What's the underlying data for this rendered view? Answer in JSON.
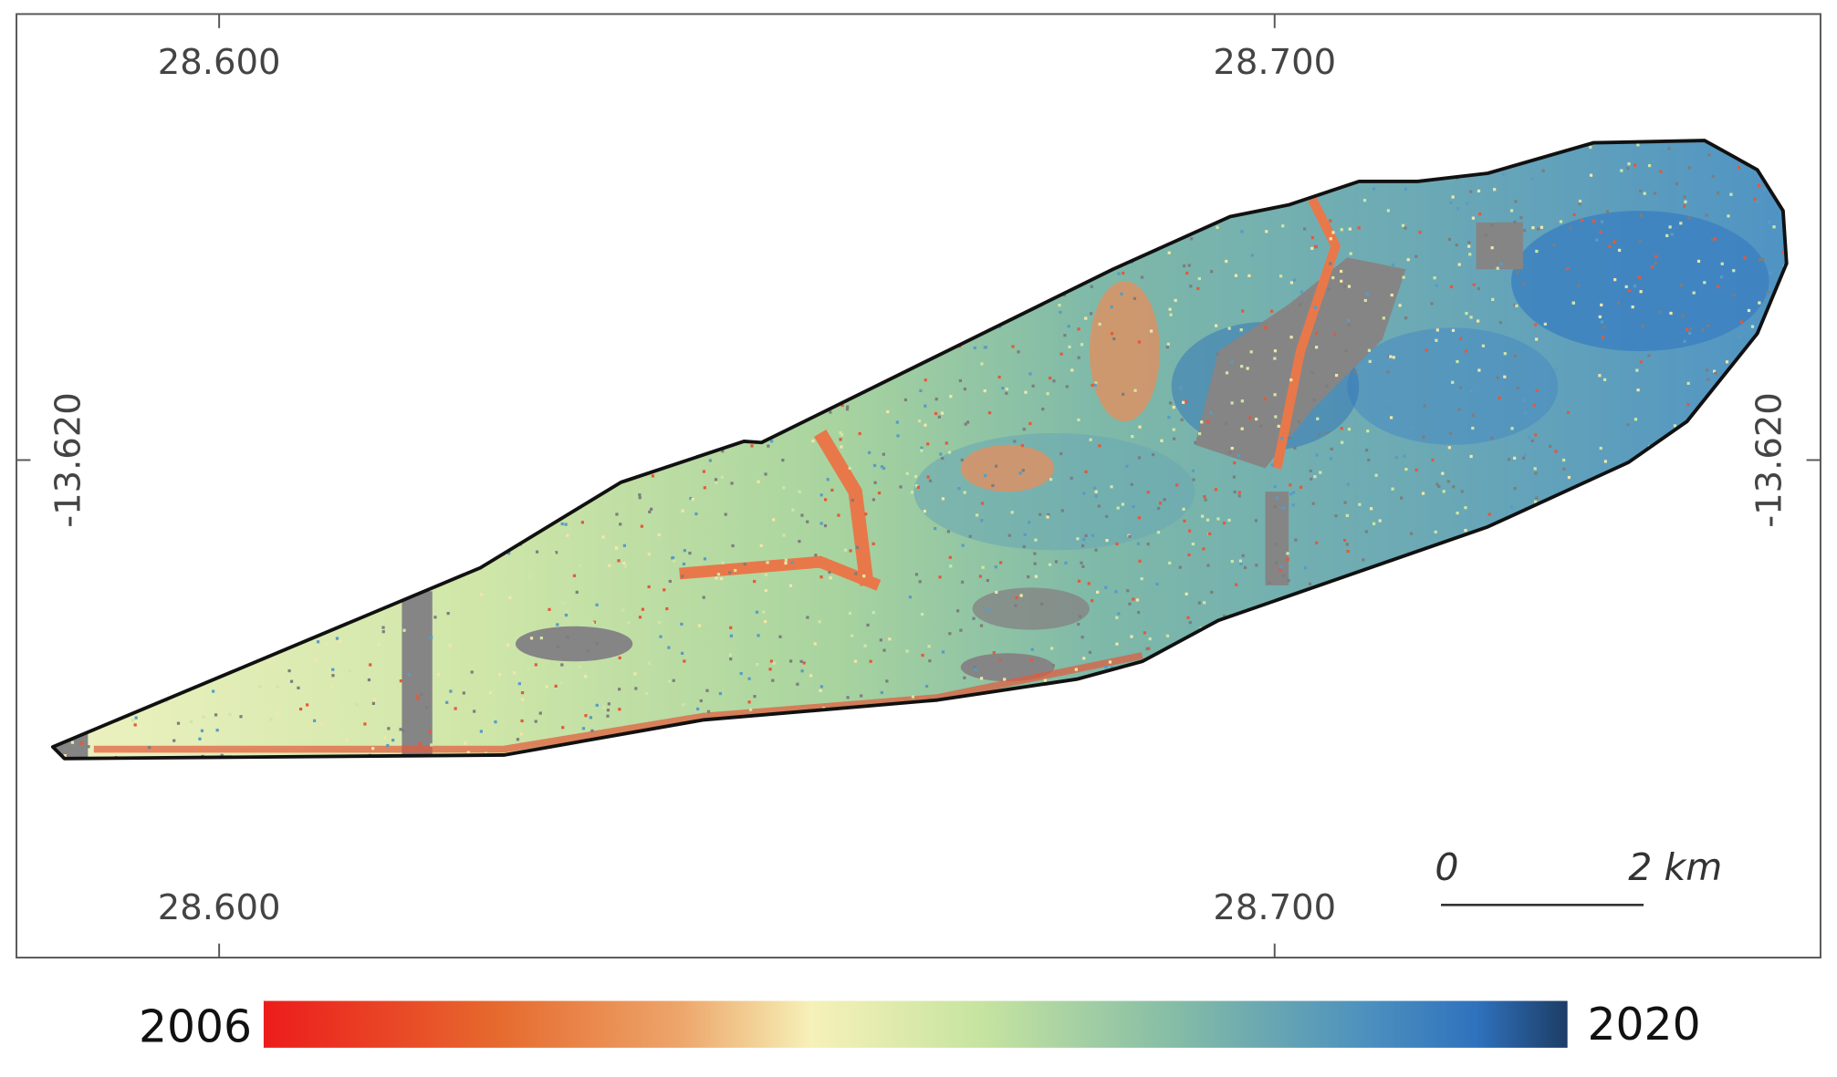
{
  "map": {
    "longitude_labels_top": [
      "28.600",
      "28.700"
    ],
    "longitude_labels_bottom": [
      "28.600",
      "28.700"
    ],
    "latitude_labels": {
      "left": "-13.620",
      "right": "-13.620"
    },
    "scale_bar": {
      "start": "0",
      "end": "2 km"
    },
    "legend": {
      "min_label": "2006",
      "max_label": "2020"
    }
  }
}
